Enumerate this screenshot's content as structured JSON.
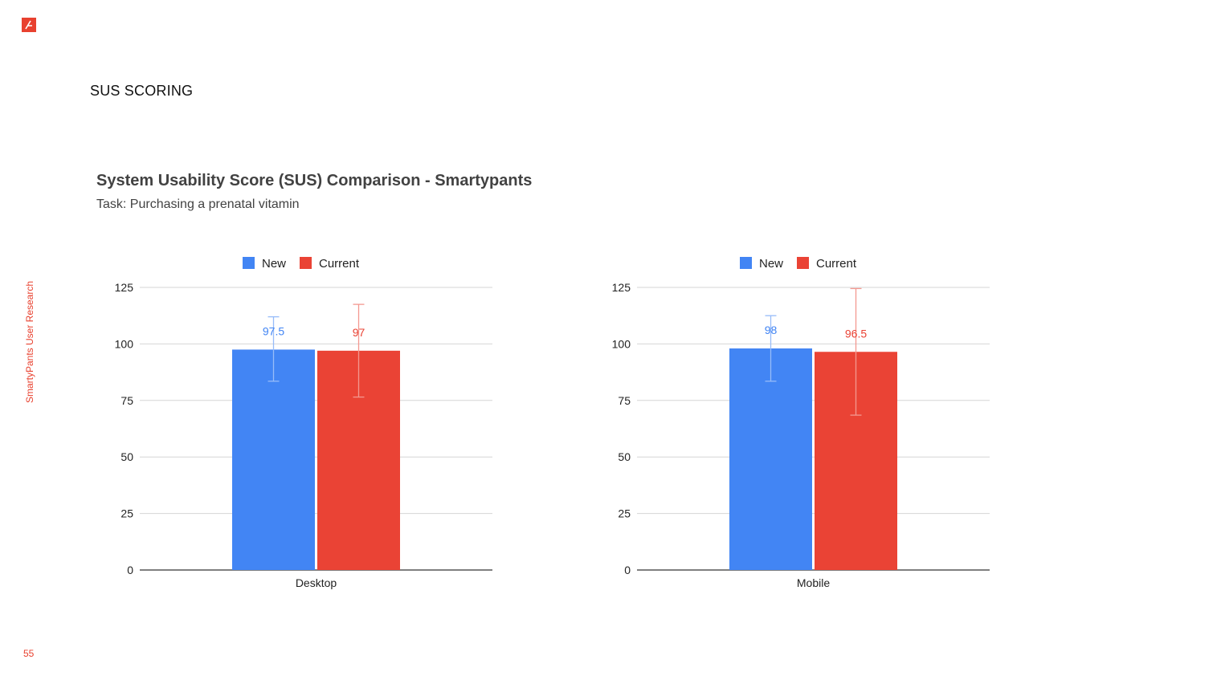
{
  "slide": {
    "section_title": "SUS SCORING",
    "side_label": "SmartyPants User Research",
    "page_number": "55",
    "brand_color": "#e8412f"
  },
  "chart_heading": {
    "title": "System Usability Score (SUS) Comparison - Smartypants",
    "subtitle": "Task: Purchasing a prenatal vitamin"
  },
  "chart_data": [
    {
      "type": "bar",
      "categories": [
        "Desktop"
      ],
      "series": [
        {
          "name": "New",
          "color": "#4285f4",
          "values": [
            97.5
          ],
          "error_low": [
            83.5
          ],
          "error_high": [
            112
          ],
          "data_labels": [
            "97.5"
          ]
        },
        {
          "name": "Current",
          "color": "#ea4335",
          "values": [
            97
          ],
          "error_low": [
            76.5
          ],
          "error_high": [
            117.5
          ],
          "data_labels": [
            "97"
          ]
        }
      ],
      "yticks": [
        0,
        25,
        50,
        75,
        100,
        125
      ],
      "ylim": [
        0,
        125
      ],
      "grid": true,
      "legend": "top-center"
    },
    {
      "type": "bar",
      "categories": [
        "Mobile"
      ],
      "series": [
        {
          "name": "New",
          "color": "#4285f4",
          "values": [
            98
          ],
          "error_low": [
            83.5
          ],
          "error_high": [
            112.5
          ],
          "data_labels": [
            "98"
          ]
        },
        {
          "name": "Current",
          "color": "#ea4335",
          "values": [
            96.5
          ],
          "error_low": [
            68.5
          ],
          "error_high": [
            124.5
          ],
          "data_labels": [
            "96.5"
          ]
        }
      ],
      "yticks": [
        0,
        25,
        50,
        75,
        100,
        125
      ],
      "ylim": [
        0,
        125
      ],
      "grid": true,
      "legend": "top-center"
    }
  ]
}
